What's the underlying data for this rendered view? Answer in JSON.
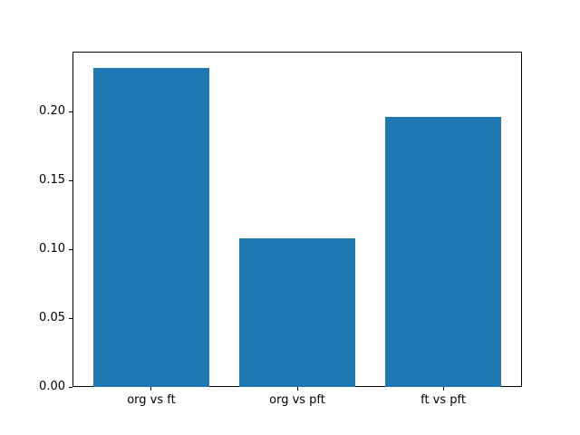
{
  "chart_data": {
    "type": "bar",
    "title": "",
    "xlabel": "",
    "ylabel": "",
    "categories": [
      "org vs ft",
      "org vs pft",
      "ft vs pft"
    ],
    "values": [
      0.232,
      0.108,
      0.196
    ],
    "bar_color": "#1f77b4",
    "ylim": [
      0,
      0.2437
    ],
    "xlim": [
      -0.54,
      2.54
    ],
    "bar_width_units": 0.8,
    "y_tick_values": [
      0.0,
      0.05,
      0.1,
      0.15,
      0.2
    ],
    "y_tick_labels": [
      "0.00",
      "0.05",
      "0.10",
      "0.15",
      "0.20"
    ],
    "grid": false,
    "legend": false,
    "background_color": "#ffffff",
    "spine_color": "#000000"
  }
}
